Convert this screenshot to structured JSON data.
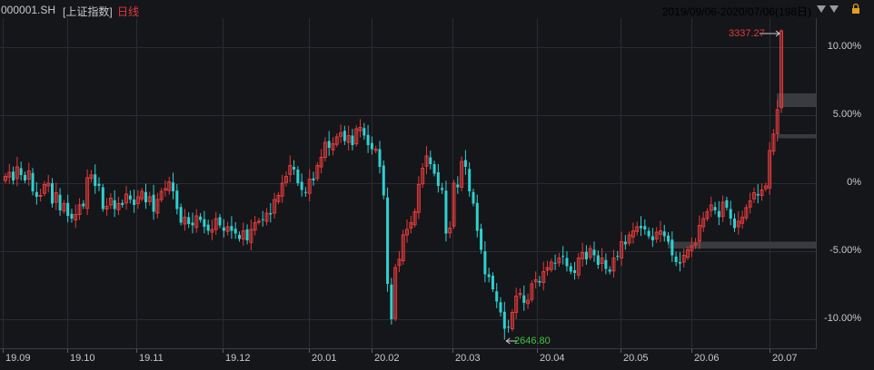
{
  "header": {
    "symbol": "000001.SH",
    "name": "[上证指数]",
    "period": "日线",
    "range": "2019/09/06-2020/07/06",
    "count": "(198日)",
    "icons": [
      "triangle-down-icon",
      "triangle-down-icon",
      "lock-icon"
    ]
  },
  "colors": {
    "up": "#e03b3b",
    "down": "#2fd0d0",
    "low_label": "#3fc53f",
    "background": "#15161a",
    "grid": "#2a2c33"
  },
  "chart_data": {
    "type": "candlestick",
    "x_ticks": [
      "19.09",
      "19.10",
      "19.11",
      "19.12",
      "20.01",
      "20.02",
      "20.03",
      "20.04",
      "20.05",
      "20.06",
      "20.07"
    ],
    "y_axis": {
      "unit": "percent",
      "ticks": [
        "10.00%",
        "5.00%",
        "0%",
        "-5.00%",
        "-10.00%"
      ],
      "tick_values": [
        10,
        5,
        0,
        -5,
        -10
      ],
      "range": [
        -12.5,
        11.5
      ]
    },
    "high_label": "3337.27",
    "low_label": "2646.80",
    "closes_pct": [
      0.5,
      0.8,
      0.2,
      1.2,
      0.6,
      0.2,
      0.9,
      -0.6,
      -1.0,
      -0.9,
      -0.1,
      0.0,
      -1.5,
      -0.7,
      -2.0,
      -1.5,
      -2.4,
      -2.6,
      -2.3,
      -1.6,
      -1.7,
      0.4,
      0.6,
      -0.2,
      -0.2,
      -1.9,
      -1.7,
      -1.1,
      -1.9,
      -1.5,
      -1.6,
      -0.8,
      -1.2,
      -1.6,
      -1.0,
      -0.6,
      -1.4,
      -1.0,
      -2.1,
      -1.2,
      -0.6,
      -0.4,
      0.1,
      -0.6,
      -1.9,
      -2.9,
      -2.5,
      -3.0,
      -3.1,
      -2.4,
      -2.7,
      -3.2,
      -3.5,
      -3.4,
      -2.6,
      -3.1,
      -3.5,
      -3.2,
      -3.5,
      -3.7,
      -4.1,
      -3.5,
      -4.2,
      -3.4,
      -2.9,
      -2.8,
      -2.7,
      -2.2,
      -2.3,
      -1.2,
      -0.9,
      0.0,
      0.5,
      1.3,
      1.0,
      0.0,
      -0.5,
      -0.7,
      0.3,
      0.2,
      1.3,
      1.9,
      3.0,
      2.6,
      2.9,
      3.4,
      3.7,
      3.1,
      3.5,
      2.8,
      4.0,
      4.1,
      3.5,
      2.8,
      2.5,
      2.5,
      1.2,
      -0.9,
      -7.4,
      -10.0,
      -6.2,
      -5.6,
      -3.8,
      -3.4,
      -2.9,
      -2.1,
      -0.1,
      1.1,
      2.0,
      1.4,
      0.7,
      -0.2,
      -0.5,
      -3.7,
      -3.3,
      0.0,
      -0.3,
      1.6,
      1.2,
      -0.6,
      -1.5,
      -3.5,
      -4.9,
      -6.7,
      -6.9,
      -7.8,
      -8.7,
      -9.5,
      -10.7,
      -10.6,
      -9.5,
      -8.3,
      -8.1,
      -8.8,
      -8.6,
      -7.4,
      -7.1,
      -7.3,
      -6.5,
      -6.2,
      -5.8,
      -5.9,
      -5.5,
      -5.4,
      -6.1,
      -6.5,
      -6.6,
      -5.5,
      -5.1,
      -5.6,
      -4.8,
      -5.3,
      -6.0,
      -5.5,
      -6.3,
      -6.5,
      -5.5,
      -5.4,
      -4.3,
      -4.5,
      -3.8,
      -3.5,
      -3.2,
      -3.3,
      -3.4,
      -3.9,
      -4.2,
      -3.6,
      -3.5,
      -3.9,
      -4.3,
      -5.3,
      -5.8,
      -5.9,
      -5.3,
      -4.9,
      -4.6,
      -4.4,
      -3.1,
      -2.6,
      -2.1,
      -1.6,
      -2.0,
      -2.5,
      -1.4,
      -1.8,
      -2.6,
      -3.3,
      -2.8,
      -2.5,
      -1.8,
      -1.3,
      -0.7,
      -0.9,
      -0.5,
      -0.2,
      2.4,
      3.6,
      5.4,
      11.2
    ],
    "volume_zones_pct": [
      {
        "from": 5.6,
        "to": 6.6
      },
      {
        "from": 3.3,
        "to": 3.6
      },
      {
        "from": -4.3,
        "to": -4.8
      }
    ]
  }
}
